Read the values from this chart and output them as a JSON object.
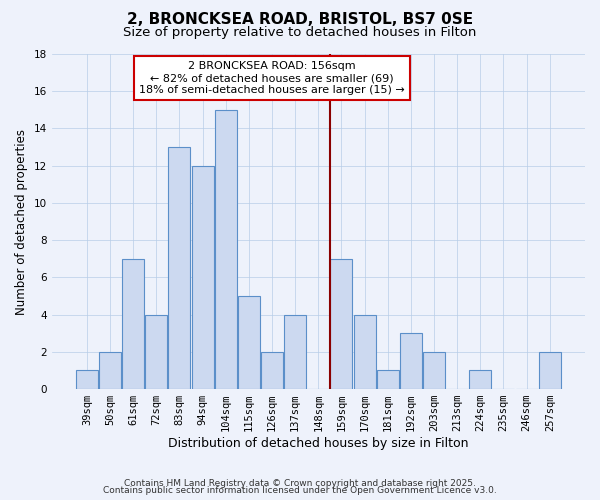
{
  "title": "2, BRONCKSEA ROAD, BRISTOL, BS7 0SE",
  "subtitle": "Size of property relative to detached houses in Filton",
  "xlabel": "Distribution of detached houses by size in Filton",
  "ylabel": "Number of detached properties",
  "bar_labels": [
    "39sqm",
    "50sqm",
    "61sqm",
    "72sqm",
    "83sqm",
    "94sqm",
    "104sqm",
    "115sqm",
    "126sqm",
    "137sqm",
    "148sqm",
    "159sqm",
    "170sqm",
    "181sqm",
    "192sqm",
    "203sqm",
    "213sqm",
    "224sqm",
    "235sqm",
    "246sqm",
    "257sqm"
  ],
  "bar_values": [
    1,
    2,
    7,
    4,
    13,
    12,
    15,
    5,
    2,
    4,
    0,
    7,
    4,
    1,
    3,
    2,
    0,
    1,
    0,
    0,
    2
  ],
  "bar_color": "#ccd9f0",
  "bar_edge_color": "#5b8fc9",
  "background_color": "#eef2fb",
  "grid_color": "#b8cde8",
  "vline_x": 10.5,
  "vline_color": "#8b0000",
  "ylim": [
    0,
    18
  ],
  "yticks": [
    0,
    2,
    4,
    6,
    8,
    10,
    12,
    14,
    16,
    18
  ],
  "annotation_title": "2 BRONCKSEA ROAD: 156sqm",
  "annotation_line1": "← 82% of detached houses are smaller (69)",
  "annotation_line2": "18% of semi-detached houses are larger (15) →",
  "annotation_box_facecolor": "#ffffff",
  "annotation_border_color": "#cc0000",
  "footer1": "Contains HM Land Registry data © Crown copyright and database right 2025.",
  "footer2": "Contains public sector information licensed under the Open Government Licence v3.0.",
  "title_fontsize": 11,
  "subtitle_fontsize": 9.5,
  "xlabel_fontsize": 9,
  "ylabel_fontsize": 8.5,
  "tick_fontsize": 7.5,
  "annotation_fontsize": 8,
  "footer_fontsize": 6.5
}
